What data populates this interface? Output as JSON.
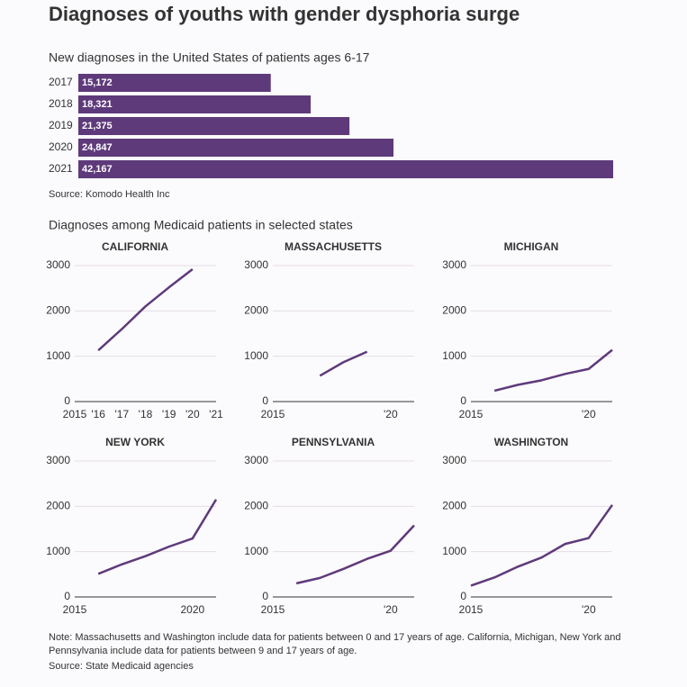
{
  "title": "Diagnoses of youths with gender dysphoria surge",
  "section_title": "Diagnoses among Medicaid patients in selected states",
  "note": "Note: Massachusetts and Washington include data for patients between 0 and 17 years of age. California, Michigan, New York and Pennsylvania include data for patients between 9 and 17 years of age.",
  "source": "Source: State Medicaid agencies",
  "chart_data": [
    {
      "type": "hbar",
      "subtitle": "New diagnoses in the United States of patients ages 6-17",
      "categories": [
        "2017",
        "2018",
        "2019",
        "2020",
        "2021"
      ],
      "values": [
        15172,
        18321,
        21375,
        24847,
        42167
      ],
      "value_labels": [
        "15,172",
        "18,321",
        "21,375",
        "24,847",
        "42,167"
      ],
      "color": "#5e3a7b",
      "source": "Source: Komodo Health Inc"
    },
    {
      "type": "line",
      "title": "CALIFORNIA",
      "color": "#5e3a7b",
      "x": [
        2016,
        2017,
        2018,
        2019,
        2020
      ],
      "values": [
        1130,
        1600,
        2100,
        2520,
        2920
      ],
      "xlim": [
        2015,
        2021
      ],
      "ylim": [
        0,
        3000
      ],
      "yticks": [
        0,
        1000,
        2000,
        3000
      ],
      "xticks": [
        2015,
        {
          "value": 2016,
          "label": "'16"
        },
        {
          "value": 2017,
          "label": "'17"
        },
        {
          "value": 2018,
          "label": "'18"
        },
        {
          "value": 2019,
          "label": "'19"
        },
        {
          "value": 2020,
          "label": "'20"
        },
        {
          "value": 2021,
          "label": "'21"
        }
      ]
    },
    {
      "type": "line",
      "title": "MASSACHUSETTS",
      "color": "#5e3a7b",
      "x": [
        2017,
        2018,
        2019
      ],
      "values": [
        570,
        870,
        1100
      ],
      "xlim": [
        2015,
        2021
      ],
      "ylim": [
        0,
        3000
      ],
      "yticks": [
        0,
        1000,
        2000,
        3000
      ],
      "xticks": [
        2015,
        {
          "value": 2020,
          "label": "'20"
        }
      ]
    },
    {
      "type": "line",
      "title": "MICHIGAN",
      "color": "#5e3a7b",
      "x": [
        2016,
        2017,
        2018,
        2019,
        2020,
        2021
      ],
      "values": [
        240,
        370,
        470,
        610,
        720,
        1140
      ],
      "xlim": [
        2015,
        2021
      ],
      "ylim": [
        0,
        3000
      ],
      "yticks": [
        0,
        1000,
        2000,
        3000
      ],
      "xticks": [
        2015,
        {
          "value": 2020,
          "label": "'20"
        }
      ]
    },
    {
      "type": "line",
      "title": "NEW YORK",
      "color": "#5e3a7b",
      "x": [
        2016,
        2017,
        2018,
        2019,
        2020,
        2021
      ],
      "values": [
        510,
        720,
        900,
        1110,
        1290,
        2150
      ],
      "xlim": [
        2015,
        2021
      ],
      "ylim": [
        0,
        3000
      ],
      "yticks": [
        0,
        1000,
        2000,
        3000
      ],
      "xticks": [
        2015,
        2020
      ]
    },
    {
      "type": "line",
      "title": "PENNSYLVANIA",
      "color": "#5e3a7b",
      "x": [
        2016,
        2017,
        2018,
        2019,
        2020,
        2021
      ],
      "values": [
        300,
        420,
        620,
        840,
        1020,
        1580
      ],
      "xlim": [
        2015,
        2021
      ],
      "ylim": [
        0,
        3000
      ],
      "yticks": [
        0,
        1000,
        2000,
        3000
      ],
      "xticks": [
        2015,
        {
          "value": 2020,
          "label": "'20"
        }
      ]
    },
    {
      "type": "line",
      "title": "WASHINGTON",
      "color": "#5e3a7b",
      "x": [
        2015,
        2016,
        2017,
        2018,
        2019,
        2020,
        2021
      ],
      "values": [
        250,
        430,
        670,
        870,
        1170,
        1300,
        2030
      ],
      "xlim": [
        2015,
        2021
      ],
      "ylim": [
        0,
        3000
      ],
      "yticks": [
        0,
        1000,
        2000,
        3000
      ],
      "xticks": [
        2015,
        {
          "value": 2020,
          "label": "'20"
        }
      ]
    }
  ]
}
